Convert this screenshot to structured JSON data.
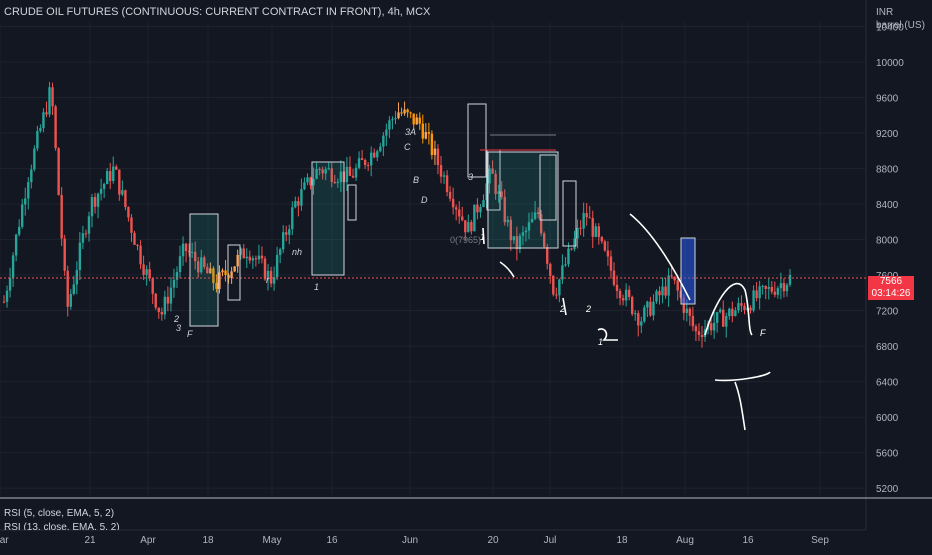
{
  "header": {
    "title": "CRUDE OIL FUTURES (CONTINUOUS: CURRENT CONTRACT IN FRONT), 4h, MCX",
    "currency": "INR",
    "unit": "barrel (US)"
  },
  "last_price": {
    "value": "7566",
    "countdown": "03:14:26",
    "color": "#f23645"
  },
  "indicators": {
    "rsi_1": "RSI (5, close, EMA, 5, 2)",
    "rsi_2": "RSI (13, close, EMA, 5, 2)"
  },
  "chart_data": {
    "type": "candlestick",
    "y_ticks": [
      5200,
      5600,
      6000,
      6400,
      6800,
      7200,
      7600,
      8000,
      8400,
      8800,
      9200,
      9600,
      10000,
      10400
    ],
    "x_ticks": [
      "Mar",
      "21",
      "Apr",
      "18",
      "May",
      "16",
      "Jun",
      "20",
      "Jul",
      "18",
      "Aug",
      "16",
      "Sep"
    ],
    "ylim": [
      5100,
      10450
    ],
    "colors": {
      "up": "#26a69a",
      "down": "#ef5350",
      "accent": "#f7a35c",
      "box_fill": "#26a69a",
      "box_blue": "#2962ff"
    },
    "wave_labels": [
      "2",
      "3",
      "F",
      "1",
      "r",
      "nh",
      "B",
      "C",
      "3A",
      "D",
      "3",
      "1",
      "2",
      "1",
      "2",
      "F"
    ],
    "annotation": "0(7965)",
    "key_path": [
      {
        "t": 0,
        "p": 7300
      },
      {
        "t": 0.03,
        "p": 8700
      },
      {
        "t": 0.06,
        "p": 9700
      },
      {
        "t": 0.08,
        "p": 7200
      },
      {
        "t": 0.11,
        "p": 8400
      },
      {
        "t": 0.14,
        "p": 8800
      },
      {
        "t": 0.17,
        "p": 7900
      },
      {
        "t": 0.2,
        "p": 7150
      },
      {
        "t": 0.23,
        "p": 7900
      },
      {
        "t": 0.27,
        "p": 7500
      },
      {
        "t": 0.31,
        "p": 7900
      },
      {
        "t": 0.34,
        "p": 7550
      },
      {
        "t": 0.37,
        "p": 8400
      },
      {
        "t": 0.4,
        "p": 8800
      },
      {
        "t": 0.44,
        "p": 8700
      },
      {
        "t": 0.47,
        "p": 9000
      },
      {
        "t": 0.5,
        "p": 9450
      },
      {
        "t": 0.53,
        "p": 9300
      },
      {
        "t": 0.56,
        "p": 8700
      },
      {
        "t": 0.59,
        "p": 8100
      },
      {
        "t": 0.62,
        "p": 8750
      },
      {
        "t": 0.65,
        "p": 7900
      },
      {
        "t": 0.68,
        "p": 8300
      },
      {
        "t": 0.7,
        "p": 7400
      },
      {
        "t": 0.74,
        "p": 8300
      },
      {
        "t": 0.78,
        "p": 7500
      },
      {
        "t": 0.81,
        "p": 7100
      },
      {
        "t": 0.85,
        "p": 7550
      },
      {
        "t": 0.88,
        "p": 6950
      },
      {
        "t": 0.92,
        "p": 7150
      },
      {
        "t": 1.0,
        "p": 7566
      }
    ],
    "current": 7566
  }
}
